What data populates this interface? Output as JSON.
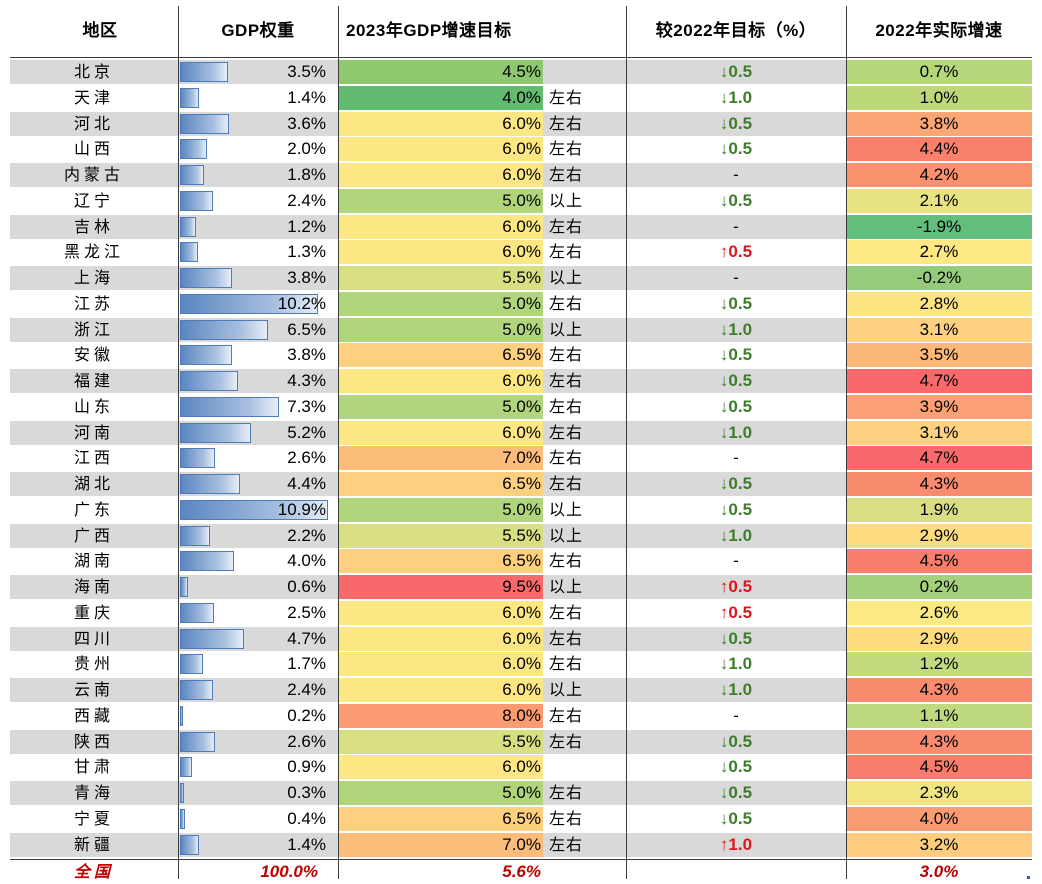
{
  "headers": {
    "region": "地区",
    "weight": "GDP权重",
    "target": "2023年GDP增速目标",
    "change": "较2022年目标（%）",
    "actual": "2022年实际增速"
  },
  "rows": [
    {
      "region": "北京",
      "weight": "3.5%",
      "weight_value": 3.5,
      "target": "4.5%",
      "qualifier": "",
      "change_dir": "down",
      "change": "0.5",
      "actual": "0.7%",
      "target_color": "#8ec86f",
      "actual_color": "#b5d77a"
    },
    {
      "region": "天津",
      "weight": "1.4%",
      "weight_value": 1.4,
      "target": "4.0%",
      "qualifier": "左右",
      "change_dir": "down",
      "change": "1.0",
      "actual": "1.0%",
      "target_color": "#62bb6e",
      "actual_color": "#bcd87b"
    },
    {
      "region": "河北",
      "weight": "3.6%",
      "weight_value": 3.6,
      "target": "6.0%",
      "qualifier": "左右",
      "change_dir": "down",
      "change": "0.5",
      "actual": "3.8%",
      "target_color": "#fde784",
      "actual_color": "#fca676"
    },
    {
      "region": "山西",
      "weight": "2.0%",
      "weight_value": 2.0,
      "target": "6.0%",
      "qualifier": "左右",
      "change_dir": "down",
      "change": "0.5",
      "actual": "4.4%",
      "target_color": "#fde784",
      "actual_color": "#f8816c"
    },
    {
      "region": "内蒙古",
      "weight": "1.8%",
      "weight_value": 1.8,
      "target": "6.0%",
      "qualifier": "左右",
      "change_dir": "none",
      "change": "-",
      "actual": "4.2%",
      "target_color": "#fde784",
      "actual_color": "#f9906e"
    },
    {
      "region": "辽宁",
      "weight": "2.4%",
      "weight_value": 2.4,
      "target": "5.0%",
      "qualifier": "以上",
      "change_dir": "down",
      "change": "0.5",
      "actual": "2.1%",
      "target_color": "#b1d57c",
      "actual_color": "#e7e282"
    },
    {
      "region": "吉林",
      "weight": "1.2%",
      "weight_value": 1.2,
      "target": "6.0%",
      "qualifier": "左右",
      "change_dir": "none",
      "change": "-",
      "actual": "-1.9%",
      "target_color": "#fde784",
      "actual_color": "#63be7b"
    },
    {
      "region": "黑龙江",
      "weight": "1.3%",
      "weight_value": 1.3,
      "target": "6.0%",
      "qualifier": "左右",
      "change_dir": "up",
      "change": "0.5",
      "actual": "2.7%",
      "target_color": "#fde784",
      "actual_color": "#fde883"
    },
    {
      "region": "上海",
      "weight": "3.8%",
      "weight_value": 3.8,
      "target": "5.5%",
      "qualifier": "以上",
      "change_dir": "none",
      "change": "-",
      "actual": "-0.2%",
      "target_color": "#d8df81",
      "actual_color": "#97cb7c"
    },
    {
      "region": "江苏",
      "weight": "10.2%",
      "weight_value": 10.2,
      "target": "5.0%",
      "qualifier": "左右",
      "change_dir": "down",
      "change": "0.5",
      "actual": "2.8%",
      "target_color": "#b1d57c",
      "actual_color": "#fde482"
    },
    {
      "region": "浙江",
      "weight": "6.5%",
      "weight_value": 6.5,
      "target": "5.0%",
      "qualifier": "以上",
      "change_dir": "down",
      "change": "1.0",
      "actual": "3.1%",
      "target_color": "#b1d57c",
      "actual_color": "#fdd17f"
    },
    {
      "region": "安徽",
      "weight": "3.8%",
      "weight_value": 3.8,
      "target": "6.5%",
      "qualifier": "左右",
      "change_dir": "down",
      "change": "0.5",
      "actual": "3.5%",
      "target_color": "#fdd07f",
      "actual_color": "#fcb879"
    },
    {
      "region": "福建",
      "weight": "4.3%",
      "weight_value": 4.3,
      "target": "6.0%",
      "qualifier": "左右",
      "change_dir": "down",
      "change": "0.5",
      "actual": "4.7%",
      "target_color": "#fde784",
      "actual_color": "#f8696b"
    },
    {
      "region": "山东",
      "weight": "7.3%",
      "weight_value": 7.3,
      "target": "5.0%",
      "qualifier": "左右",
      "change_dir": "down",
      "change": "0.5",
      "actual": "3.9%",
      "target_color": "#b1d57c",
      "actual_color": "#fba175"
    },
    {
      "region": "河南",
      "weight": "5.2%",
      "weight_value": 5.2,
      "target": "6.0%",
      "qualifier": "左右",
      "change_dir": "down",
      "change": "1.0",
      "actual": "3.1%",
      "target_color": "#fde784",
      "actual_color": "#fdd17f"
    },
    {
      "region": "江西",
      "weight": "2.6%",
      "weight_value": 2.6,
      "target": "7.0%",
      "qualifier": "左右",
      "change_dir": "none",
      "change": "-",
      "actual": "4.7%",
      "target_color": "#fcbd7b",
      "actual_color": "#f8696b"
    },
    {
      "region": "湖北",
      "weight": "4.4%",
      "weight_value": 4.4,
      "target": "6.5%",
      "qualifier": "左右",
      "change_dir": "down",
      "change": "0.5",
      "actual": "4.3%",
      "target_color": "#fdd07f",
      "actual_color": "#f98b6e"
    },
    {
      "region": "广东",
      "weight": "10.9%",
      "weight_value": 10.9,
      "target": "5.0%",
      "qualifier": "以上",
      "change_dir": "down",
      "change": "0.5",
      "actual": "1.9%",
      "target_color": "#b1d57c",
      "actual_color": "#d8de81"
    },
    {
      "region": "广西",
      "weight": "2.2%",
      "weight_value": 2.2,
      "target": "5.5%",
      "qualifier": "以上",
      "change_dir": "down",
      "change": "1.0",
      "actual": "2.9%",
      "target_color": "#d8df81",
      "actual_color": "#fddb80"
    },
    {
      "region": "湖南",
      "weight": "4.0%",
      "weight_value": 4.0,
      "target": "6.5%",
      "qualifier": "左右",
      "change_dir": "none",
      "change": "-",
      "actual": "4.5%",
      "target_color": "#fdd07f",
      "actual_color": "#f87d6c"
    },
    {
      "region": "海南",
      "weight": "0.6%",
      "weight_value": 0.6,
      "target": "9.5%",
      "qualifier": "以上",
      "change_dir": "up",
      "change": "0.5",
      "actual": "0.2%",
      "target_color": "#f8696b",
      "actual_color": "#a5d07d"
    },
    {
      "region": "重庆",
      "weight": "2.5%",
      "weight_value": 2.5,
      "target": "6.0%",
      "qualifier": "左右",
      "change_dir": "up",
      "change": "0.5",
      "actual": "2.6%",
      "target_color": "#fde784",
      "actual_color": "#fbe983"
    },
    {
      "region": "四川",
      "weight": "4.7%",
      "weight_value": 4.7,
      "target": "6.0%",
      "qualifier": "左右",
      "change_dir": "down",
      "change": "0.5",
      "actual": "2.9%",
      "target_color": "#fde784",
      "actual_color": "#fddb80"
    },
    {
      "region": "贵州",
      "weight": "1.7%",
      "weight_value": 1.7,
      "target": "6.0%",
      "qualifier": "左右",
      "change_dir": "down",
      "change": "1.0",
      "actual": "1.2%",
      "target_color": "#fde784",
      "actual_color": "#c3da7f"
    },
    {
      "region": "云南",
      "weight": "2.4%",
      "weight_value": 2.4,
      "target": "6.0%",
      "qualifier": "以上",
      "change_dir": "down",
      "change": "1.0",
      "actual": "4.3%",
      "target_color": "#fde784",
      "actual_color": "#f98b6e"
    },
    {
      "region": "西藏",
      "weight": "0.2%",
      "weight_value": 0.2,
      "target": "8.0%",
      "qualifier": "左右",
      "change_dir": "none",
      "change": "-",
      "actual": "1.1%",
      "target_color": "#fa9b72",
      "actual_color": "#bfd97e"
    },
    {
      "region": "陕西",
      "weight": "2.6%",
      "weight_value": 2.6,
      "target": "5.5%",
      "qualifier": "左右",
      "change_dir": "down",
      "change": "0.5",
      "actual": "4.3%",
      "target_color": "#d8df81",
      "actual_color": "#f98b6e"
    },
    {
      "region": "甘肃",
      "weight": "0.9%",
      "weight_value": 0.9,
      "target": "6.0%",
      "qualifier": "",
      "change_dir": "down",
      "change": "0.5",
      "actual": "4.5%",
      "target_color": "#fde784",
      "actual_color": "#f87d6c"
    },
    {
      "region": "青海",
      "weight": "0.3%",
      "weight_value": 0.3,
      "target": "5.0%",
      "qualifier": "左右",
      "change_dir": "down",
      "change": "0.5",
      "actual": "2.3%",
      "target_color": "#b1d57c",
      "actual_color": "#f0e582"
    },
    {
      "region": "宁夏",
      "weight": "0.4%",
      "weight_value": 0.4,
      "target": "6.5%",
      "qualifier": "左右",
      "change_dir": "down",
      "change": "0.5",
      "actual": "4.0%",
      "target_color": "#fdd07f",
      "actual_color": "#fa9c73"
    },
    {
      "region": "新疆",
      "weight": "1.4%",
      "weight_value": 1.4,
      "target": "7.0%",
      "qualifier": "左右",
      "change_dir": "up",
      "change": "1.0",
      "actual": "3.2%",
      "target_color": "#fcbd7b",
      "actual_color": "#fdcc7e"
    }
  ],
  "total": {
    "region": "全国",
    "weight": "100.0%",
    "target": "5.6%",
    "actual": "3.0%"
  },
  "colors": {
    "grey_row": "#d9d9d9",
    "white_row": "#ffffff",
    "up_arrow": "#e0141e",
    "down_arrow": "#3e7d2b",
    "total_text": "#c00000",
    "bar": "#5a86c0"
  },
  "icons": {
    "up": "arrow-up-icon",
    "down": "arrow-down-icon"
  }
}
